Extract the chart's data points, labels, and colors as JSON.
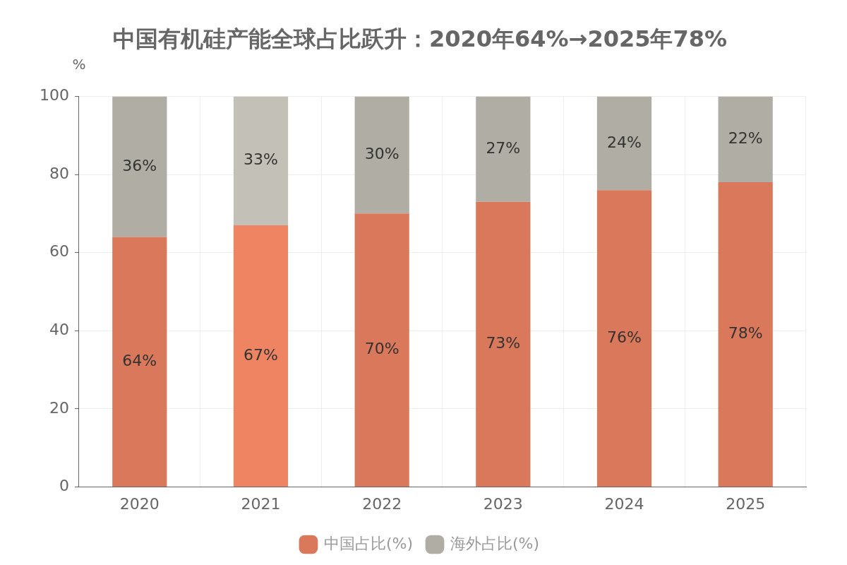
{
  "chart_data": {
    "type": "bar",
    "title": "中国有机硅产能全球占比跃升：2020年64%→2025年78%",
    "ylabel": "%",
    "categories": [
      "2020",
      "2021",
      "2022",
      "2023",
      "2024",
      "2025"
    ],
    "stacked": true,
    "series": [
      {
        "name": "中国占比(%)",
        "color": "#d9785a",
        "colors": [
          "#d9785a",
          "#ee8462",
          "#d9785a",
          "#d9785a",
          "#d9785a",
          "#d9785a"
        ],
        "values": [
          64,
          67,
          70,
          73,
          76,
          78
        ],
        "value_labels": [
          "64%",
          "67%",
          "70%",
          "73%",
          "76%",
          "78%"
        ]
      },
      {
        "name": "海外占比(%)",
        "color": "#b0ada4",
        "colors": [
          "#b0ada4",
          "#c3c0b7",
          "#b0ada4",
          "#b0ada4",
          "#b0ada4",
          "#b0ada4"
        ],
        "values": [
          36,
          33,
          30,
          27,
          24,
          22
        ],
        "value_labels": [
          "36%",
          "33%",
          "30%",
          "27%",
          "24%",
          "22%"
        ]
      }
    ],
    "ylim": [
      0,
      100
    ],
    "yticks": [
      0,
      20,
      40,
      60,
      80,
      100
    ],
    "grid": true,
    "legend": "bottom"
  }
}
